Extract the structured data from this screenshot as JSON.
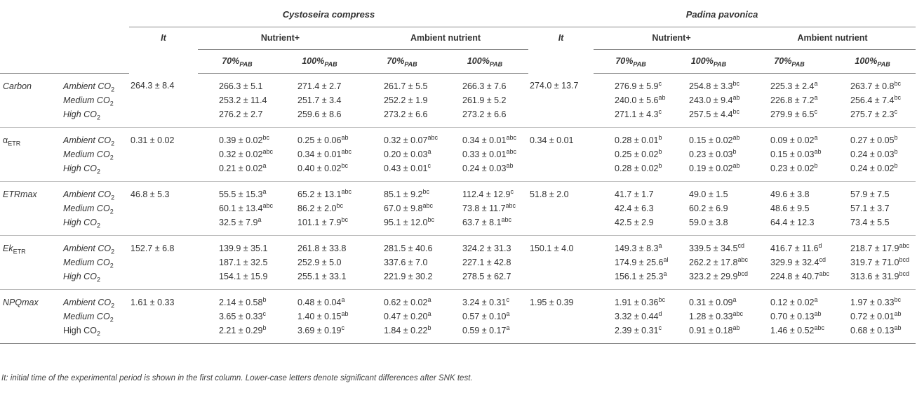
{
  "header": {
    "species": [
      "Cystoseira compress",
      "Padina pavonica"
    ],
    "it_label": "It",
    "groups": [
      "Nutrient+",
      "Ambient nutrient"
    ],
    "pab": [
      {
        "main": "70%",
        "sub": "PAB"
      },
      {
        "main": "100%",
        "sub": "PAB"
      }
    ]
  },
  "blocks": [
    {
      "param": "Carbon",
      "param_style": "italic",
      "param_sub": "",
      "rows": [
        {
          "level": "Ambient CO",
          "sub": "2",
          "italic": true,
          "it1": "264.3 ± 8.4",
          "c": [
            [
              "266.3 ± 5.1",
              ""
            ],
            [
              "271.4 ± 2.7",
              ""
            ],
            [
              "261.7 ± 5.5",
              ""
            ],
            [
              "266.3 ± 7.6",
              ""
            ]
          ],
          "it2": "274.0 ± 13.7",
          "p": [
            [
              "276.9 ± 5.9",
              "c"
            ],
            [
              "254.8 ± 3.3",
              "bc"
            ],
            [
              "225.3 ± 2.4",
              "a"
            ],
            [
              "263.7 ± 0.8",
              "bc"
            ]
          ]
        },
        {
          "level": "Medium CO",
          "sub": "2",
          "italic": true,
          "it1": "",
          "c": [
            [
              "253.2 ± 11.4",
              ""
            ],
            [
              "251.7 ± 3.4",
              ""
            ],
            [
              "252.2 ± 1.9",
              ""
            ],
            [
              "261.9 ± 5.2",
              ""
            ]
          ],
          "it2": "",
          "p": [
            [
              "240.0 ± 5.6",
              "ab"
            ],
            [
              "243.0 ± 9.4",
              "ab"
            ],
            [
              "226.8 ± 7.2",
              "a"
            ],
            [
              "256.4 ± 7.4",
              "bc"
            ]
          ]
        },
        {
          "level": "High CO",
          "sub": "2",
          "italic": true,
          "it1": "",
          "c": [
            [
              "276.2 ± 2.7",
              ""
            ],
            [
              "259.6 ± 8.6",
              ""
            ],
            [
              "273.2 ± 6.6",
              ""
            ],
            [
              "273.2 ± 6.6",
              ""
            ]
          ],
          "it2": "",
          "p": [
            [
              "271.1 ± 4.3",
              "c"
            ],
            [
              "257.5 ± 4.4",
              "bc"
            ],
            [
              "279.9 ± 6.5",
              "c"
            ],
            [
              "275.7 ± 2.3",
              "c"
            ]
          ]
        }
      ]
    },
    {
      "param": "α",
      "param_style": "plain",
      "param_sub": "ETR",
      "rows": [
        {
          "level": "Ambient CO",
          "sub": "2",
          "italic": true,
          "it1": "0.31 ± 0.02",
          "c": [
            [
              "0.39 ± 0.02",
              "bc"
            ],
            [
              "0.25 ± 0.06",
              "ab"
            ],
            [
              "0.32 ± 0.07",
              "abc"
            ],
            [
              "0.34 ± 0.01",
              "abc"
            ]
          ],
          "it2": "0.34 ± 0.01",
          "p": [
            [
              "0.28 ± 0.01",
              "b"
            ],
            [
              "0.15 ± 0.02",
              "ab"
            ],
            [
              "0.09 ± 0.02",
              "a"
            ],
            [
              "0.27 ± 0.05",
              "b"
            ]
          ]
        },
        {
          "level": "Medium CO",
          "sub": "2",
          "italic": true,
          "it1": "",
          "c": [
            [
              "0.32 ± 0.02",
              "abc"
            ],
            [
              "0.34 ± 0.01",
              "abc"
            ],
            [
              "0.20 ± 0.03",
              "a"
            ],
            [
              "0.33 ± 0.01",
              "abc"
            ]
          ],
          "it2": "",
          "p": [
            [
              "0.25 ± 0.02",
              "b"
            ],
            [
              "0.23 ± 0.03",
              "b"
            ],
            [
              "0.15 ± 0.03",
              "ab"
            ],
            [
              "0.24 ± 0.03",
              "b"
            ]
          ]
        },
        {
          "level": "High CO",
          "sub": "2",
          "italic": true,
          "it1": "",
          "c": [
            [
              "0.21 ± 0.02",
              "a"
            ],
            [
              "0.40 ± 0.02",
              "bc"
            ],
            [
              "0.43 ± 0.01",
              "c"
            ],
            [
              "0.24 ± 0.03",
              "ab"
            ]
          ],
          "it2": "",
          "p": [
            [
              "0.28 ± 0.02",
              "b"
            ],
            [
              "0.19 ± 0.02",
              "ab"
            ],
            [
              "0.23 ± 0.02",
              "b"
            ],
            [
              "0.24 ± 0.02",
              "b"
            ]
          ]
        }
      ]
    },
    {
      "param": "ETRmax",
      "param_style": "italic",
      "param_sub": "",
      "rows": [
        {
          "level": "Ambient CO",
          "sub": "2",
          "italic": true,
          "it1": "46.8 ± 5.3",
          "c": [
            [
              "55.5 ± 15.3",
              "a"
            ],
            [
              "65.2 ± 13.1",
              "abc"
            ],
            [
              "85.1 ± 9.2",
              "bc"
            ],
            [
              "112.4 ± 12.9",
              "c"
            ]
          ],
          "it2": "51.8 ± 2.0",
          "p": [
            [
              "41.7 ± 1.7",
              ""
            ],
            [
              "49.0 ± 1.5",
              ""
            ],
            [
              "49.6 ± 3.8",
              ""
            ],
            [
              "57.9 ± 7.5",
              ""
            ]
          ]
        },
        {
          "level": "Medium CO",
          "sub": "2",
          "italic": true,
          "it1": "",
          "c": [
            [
              "60.1 ± 13.4",
              "abc"
            ],
            [
              "86.2 ± 2.0",
              "bc"
            ],
            [
              "67.0 ± 9.8",
              "abc"
            ],
            [
              "73.8 ± 11.7",
              "abc"
            ]
          ],
          "it2": "",
          "p": [
            [
              "42.4 ± 6.3",
              ""
            ],
            [
              "60.2 ± 6.9",
              ""
            ],
            [
              "48.6 ± 9.5",
              ""
            ],
            [
              "57.1 ± 3.7",
              ""
            ]
          ]
        },
        {
          "level": "High CO",
          "sub": "2",
          "italic": true,
          "it1": "",
          "c": [
            [
              "32.5 ± 7.9",
              "a"
            ],
            [
              "101.1 ± 7.9",
              "bc"
            ],
            [
              "95.1 ± 12.0",
              "bc"
            ],
            [
              "63.7 ± 8.1",
              "abc"
            ]
          ],
          "it2": "",
          "p": [
            [
              "42.5 ± 2.9",
              ""
            ],
            [
              "59.0 ± 3.8",
              ""
            ],
            [
              "64.4 ± 12.3",
              ""
            ],
            [
              "73.4 ± 5.5",
              ""
            ]
          ]
        }
      ]
    },
    {
      "param": "Ek",
      "param_style": "italic",
      "param_sub": "ETR",
      "rows": [
        {
          "level": "Ambient CO",
          "sub": "2",
          "italic": true,
          "it1": "152.7 ± 6.8",
          "c": [
            [
              "139.9 ± 35.1",
              ""
            ],
            [
              "261.8 ± 33.8",
              ""
            ],
            [
              "281.5 ± 40.6",
              ""
            ],
            [
              "324.2 ± 31.3",
              ""
            ]
          ],
          "it2": "150.1 ± 4.0",
          "p": [
            [
              "149.3 ± 8.3",
              "a"
            ],
            [
              "339.5 ± 34.5",
              "cd"
            ],
            [
              "416.7 ± 11.6",
              "d"
            ],
            [
              "218.7 ± 17.9",
              "abc"
            ]
          ]
        },
        {
          "level": "Medium CO",
          "sub": "2",
          "italic": true,
          "it1": "",
          "c": [
            [
              "187.1 ± 32.5",
              ""
            ],
            [
              "252.9 ± 5.0",
              ""
            ],
            [
              "337.6 ± 7.0",
              ""
            ],
            [
              "227.1 ± 42.8",
              ""
            ]
          ],
          "it2": "",
          "p": [
            [
              "174.9 ± 25.6",
              "ab"
            ],
            [
              "262.2 ± 17.8",
              "abc"
            ],
            [
              "329.9 ± 32.4",
              "cd"
            ],
            [
              "319.7 ± 71.0",
              "bcd"
            ]
          ]
        },
        {
          "level": "High CO",
          "sub": "2",
          "italic": true,
          "it1": "",
          "c": [
            [
              "154.1 ± 15.9",
              ""
            ],
            [
              "255.1 ± 33.1",
              ""
            ],
            [
              "221.9 ± 30.2",
              ""
            ],
            [
              "278.5 ± 62.7",
              ""
            ]
          ],
          "it2": "",
          "p": [
            [
              "156.1 ± 25.3",
              "a"
            ],
            [
              "323.2 ± 29.9",
              "bcd"
            ],
            [
              "224.8 ± 40.7",
              "abc"
            ],
            [
              "313.6 ± 31.9",
              "bcd"
            ]
          ]
        }
      ]
    },
    {
      "param": "NPQmax",
      "param_style": "italic",
      "param_sub": "",
      "rows": [
        {
          "level": "Ambient CO",
          "sub": "2",
          "italic": true,
          "it1": "1.61 ± 0.33",
          "c": [
            [
              "2.14 ± 0.58",
              "b"
            ],
            [
              "0.48 ± 0.04",
              "a"
            ],
            [
              "0.62 ± 0.02",
              "a"
            ],
            [
              "3.24 ± 0.31",
              "c"
            ]
          ],
          "it2": "1.95 ± 0.39",
          "p": [
            [
              "1.91 ± 0.36",
              "bc"
            ],
            [
              "0.31 ± 0.09",
              "a"
            ],
            [
              "0.12 ± 0.02",
              "a"
            ],
            [
              "1.97 ± 0.33",
              "bc"
            ]
          ]
        },
        {
          "level": "Medium CO",
          "sub": "2",
          "italic": true,
          "it1": "",
          "c": [
            [
              "3.65 ± 0.33",
              "c"
            ],
            [
              "1.40 ± 0.15",
              "ab"
            ],
            [
              "0.47 ± 0.20",
              "a"
            ],
            [
              "0.57 ± 0.10",
              "a"
            ]
          ],
          "it2": "",
          "p": [
            [
              "3.32 ± 0.44",
              "d"
            ],
            [
              "1.28 ± 0.33",
              "abc"
            ],
            [
              "0.70 ± 0.13",
              "ab"
            ],
            [
              "0.72 ± 0.01",
              "ab"
            ]
          ]
        },
        {
          "level": "High CO",
          "sub": "2",
          "italic": false,
          "it1": "",
          "c": [
            [
              "2.21 ± 0.29",
              "b"
            ],
            [
              "3.69 ± 0.19",
              "c"
            ],
            [
              "1.84 ± 0.22",
              "b"
            ],
            [
              "0.59 ± 0.17",
              "a"
            ]
          ],
          "it2": "",
          "p": [
            [
              "2.39 ± 0.31",
              "c"
            ],
            [
              "0.91 ± 0.18",
              "ab"
            ],
            [
              "1.46 ± 0.52",
              "abc"
            ],
            [
              "0.68 ± 0.13",
              "ab"
            ]
          ]
        }
      ]
    }
  ],
  "footnote": "It: initial time of the experimental period is shown in the first column. Lower-case letters denote significant differences after SNK test."
}
